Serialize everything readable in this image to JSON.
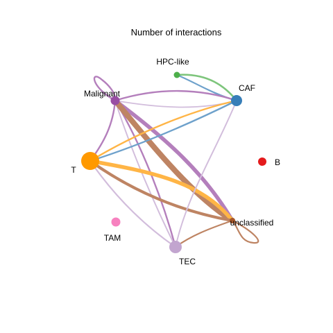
{
  "title": "Number of interactions",
  "nodes": [
    {
      "id": "hpc",
      "label": "HPC-like",
      "color": "#4DAF4A",
      "size": "small"
    },
    {
      "id": "caf",
      "label": "CAF",
      "color": "#377EB8",
      "size": "medium"
    },
    {
      "id": "b",
      "label": "B",
      "color": "#E41A1C",
      "size": "small"
    },
    {
      "id": "unclassified",
      "label": "unclassified",
      "color": "#A65628",
      "size": "small"
    },
    {
      "id": "tec",
      "label": "TEC",
      "color": "#C2A5CF",
      "size": "medium"
    },
    {
      "id": "tam",
      "label": "TAM",
      "color": "#F781BF",
      "size": "small"
    },
    {
      "id": "t",
      "label": "T",
      "color": "#FF9900",
      "size": "large"
    },
    {
      "id": "malignant",
      "label": "Malignant",
      "color": "#984EA3",
      "size": "small"
    }
  ],
  "edges": [
    {
      "source": "hpc",
      "target": "caf",
      "color": "#4DAF4A",
      "weight": "thin"
    },
    {
      "source": "caf",
      "target": "hpc",
      "color": "#377EB8",
      "weight": "thin"
    },
    {
      "source": "malignant",
      "target": "malignant",
      "color": "#984EA3",
      "weight": "thin"
    },
    {
      "source": "malignant",
      "target": "caf",
      "color": "#984EA3",
      "weight": "thin"
    },
    {
      "source": "malignant",
      "target": "t",
      "color": "#984EA3",
      "weight": "thin"
    },
    {
      "source": "malignant",
      "target": "unclassified",
      "color": "#984EA3",
      "weight": "thick"
    },
    {
      "source": "malignant",
      "target": "tec",
      "color": "#984EA3",
      "weight": "thin"
    },
    {
      "source": "t",
      "target": "caf",
      "color": "#FF9900",
      "weight": "thin"
    },
    {
      "source": "t",
      "target": "unclassified",
      "color": "#FF9900",
      "weight": "thick"
    },
    {
      "source": "t",
      "target": "tec",
      "color": "#C2A5CF",
      "weight": "thin"
    },
    {
      "source": "caf",
      "target": "t",
      "color": "#377EB8",
      "weight": "thin"
    },
    {
      "source": "caf",
      "target": "malignant",
      "color": "#C2A5CF",
      "weight": "thin"
    },
    {
      "source": "unclassified",
      "target": "malignant",
      "color": "#A65628",
      "weight": "thick"
    },
    {
      "source": "unclassified",
      "target": "t",
      "color": "#A65628",
      "weight": "medium"
    },
    {
      "source": "unclassified",
      "target": "unclassified",
      "color": "#A65628",
      "weight": "thin"
    },
    {
      "source": "unclassified",
      "target": "tec",
      "color": "#A65628",
      "weight": "thin"
    },
    {
      "source": "tec",
      "target": "caf",
      "color": "#C2A5CF",
      "weight": "thin"
    },
    {
      "source": "tec",
      "target": "malignant",
      "color": "#C2A5CF",
      "weight": "thin"
    },
    {
      "source": "tam",
      "target": "unclassified",
      "color": "#C2A5CF",
      "weight": "thin"
    }
  ]
}
